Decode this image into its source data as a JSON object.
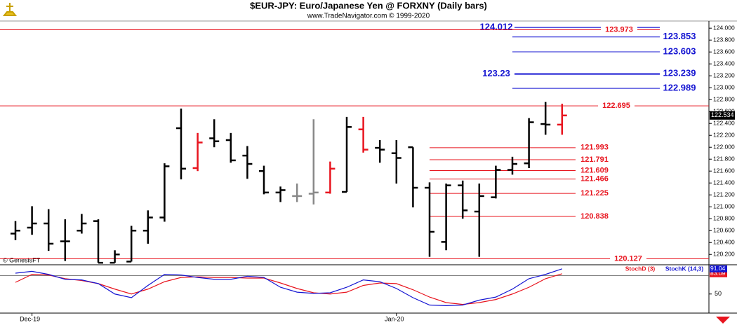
{
  "chart_data": [
    {
      "type": "ohlc",
      "title": "$EUR-JPY:  Euro/Japanese Yen @ FORXNY  (Daily bars)",
      "subtitle": "www.TradeNavigator.com © 1999-2020",
      "categories": [
        null,
        "Dec-19",
        null,
        null,
        null,
        null,
        null,
        null,
        null,
        null,
        null,
        null,
        null,
        null,
        null,
        null,
        null,
        null,
        null,
        null,
        null,
        null,
        null,
        "Jan-20",
        null,
        null,
        null,
        null,
        null,
        null,
        null,
        null,
        null,
        null
      ],
      "open": [
        120.55,
        120.65,
        120.72,
        120.42,
        120.6,
        120.76,
        120.06,
        120.08,
        120.6,
        120.82,
        122.32,
        121.65,
        122.15,
        122.12,
        121.86,
        121.6,
        121.24,
        121.18,
        121.22,
        121.24,
        121.25,
        122.3,
        121.99,
        121.9,
        122.0,
        121.32,
        120.41,
        121.36,
        120.92,
        121.16,
        121.62,
        121.73,
        122.39,
        122.38
      ],
      "high": [
        120.76,
        121.01,
        120.96,
        120.79,
        120.88,
        120.79,
        120.27,
        120.68,
        120.94,
        121.73,
        122.65,
        122.24,
        122.47,
        122.24,
        122.02,
        121.69,
        121.34,
        121.39,
        122.47,
        121.76,
        122.51,
        122.51,
        122.12,
        122.12,
        122.0,
        121.41,
        121.39,
        121.44,
        121.39,
        121.69,
        121.84,
        122.49,
        122.76,
        122.73
      ],
      "low": [
        120.44,
        120.53,
        120.26,
        120.09,
        120.55,
        120.06,
        120.06,
        120.08,
        120.38,
        120.75,
        121.46,
        121.6,
        122.0,
        121.74,
        121.47,
        121.21,
        121.08,
        121.08,
        121.04,
        121.22,
        121.25,
        121.91,
        121.74,
        121.39,
        120.99,
        120.16,
        120.27,
        120.8,
        120.16,
        121.14,
        121.54,
        121.65,
        122.21,
        122.21
      ],
      "close": [
        120.6,
        120.72,
        120.38,
        120.42,
        120.72,
        120.06,
        120.2,
        120.6,
        120.82,
        121.68,
        121.64,
        122.08,
        122.1,
        121.78,
        121.72,
        121.24,
        121.28,
        121.18,
        121.24,
        121.64,
        122.34,
        121.96,
        121.96,
        121.82,
        121.32,
        120.58,
        121.36,
        120.94,
        121.18,
        121.62,
        121.72,
        122.42,
        122.38,
        122.534
      ],
      "bar_colors": [
        "#000000",
        "#000000",
        "#000000",
        "#000000",
        "#000000",
        "#000000",
        "#000000",
        "#000000",
        "#000000",
        "#000000",
        "#000000",
        "#e8141e",
        "#000000",
        "#000000",
        "#000000",
        "#000000",
        "#000000",
        "#888888",
        "#888888",
        "#e8141e",
        "#000000",
        "#e8141e",
        "#000000",
        "#000000",
        "#000000",
        "#000000",
        "#000000",
        "#000000",
        "#000000",
        "#000000",
        "#000000",
        "#000000",
        "#000000",
        "#e8141e"
      ],
      "ylim": [
        120.05,
        124.12
      ],
      "yticks": [
        {
          "value": 120.2,
          "label": "120.200"
        },
        {
          "value": 120.4,
          "label": "120.400"
        },
        {
          "value": 120.6,
          "label": "120.600"
        },
        {
          "value": 120.8,
          "label": "120.800"
        },
        {
          "value": 121.0,
          "label": "121.000"
        },
        {
          "value": 121.2,
          "label": "121.200"
        },
        {
          "value": 121.4,
          "label": "121.400"
        },
        {
          "value": 121.6,
          "label": "121.600"
        },
        {
          "value": 121.8,
          "label": "121.800"
        },
        {
          "value": 122.0,
          "label": "122.000"
        },
        {
          "value": 122.2,
          "label": "122.200"
        },
        {
          "value": 122.4,
          "label": "122.400"
        },
        {
          "value": 122.6,
          "label": "122.600"
        },
        {
          "value": 122.8,
          "label": "122.800"
        },
        {
          "value": 123.0,
          "label": "123.000"
        },
        {
          "value": 123.2,
          "label": "123.200"
        },
        {
          "value": 123.4,
          "label": "123.400"
        },
        {
          "value": 123.6,
          "label": "123.600"
        },
        {
          "value": 123.8,
          "label": "123.800"
        },
        {
          "value": 124.0,
          "label": "124.000"
        }
      ],
      "levels": [
        {
          "value": 124.012,
          "color": "#1414d2"
        },
        {
          "value": 123.973,
          "color": "#e8141e"
        },
        {
          "value": 123.853,
          "color": "#1414d2"
        },
        {
          "value": 123.603,
          "color": "#1414d2"
        },
        {
          "value": 123.23,
          "color": "#1414d2"
        },
        {
          "value": 123.239,
          "color": "#1414d2"
        },
        {
          "value": 122.989,
          "color": "#1414d2"
        },
        {
          "value": 122.695,
          "color": "#e8141e"
        },
        {
          "value": 121.993,
          "color": "#e8141e"
        },
        {
          "value": 121.791,
          "color": "#e8141e"
        },
        {
          "value": 121.609,
          "color": "#e8141e"
        },
        {
          "value": 121.466,
          "color": "#e8141e"
        },
        {
          "value": 121.225,
          "color": "#e8141e"
        },
        {
          "value": 120.838,
          "color": "#e8141e"
        },
        {
          "value": 120.127,
          "color": "#e8141e"
        }
      ]
    },
    {
      "type": "line",
      "annotation": "© GenesisFT",
      "series": [
        {
          "name": "StochD (3)",
          "color": "#e8141e",
          "values": [
            69,
            82,
            81,
            75,
            72,
            67,
            58,
            50,
            58,
            70,
            77,
            78,
            77,
            77,
            76,
            76,
            68,
            59,
            52,
            50,
            53,
            64,
            68,
            67,
            57,
            45,
            36,
            33,
            36,
            41,
            50,
            61,
            75,
            83.09
          ]
        },
        {
          "name": "StochK (14,3)",
          "color": "#1414d2",
          "values": [
            84,
            87,
            82,
            74,
            73,
            67,
            50,
            44,
            64,
            82,
            81,
            77,
            74,
            74,
            79,
            77,
            61,
            53,
            51,
            52,
            61,
            73,
            70,
            59,
            44,
            32,
            31,
            32,
            40,
            45,
            58,
            75,
            82,
            91.04
          ]
        }
      ],
      "ylim": [
        20,
        100
      ],
      "yticks": [
        50
      ],
      "hlines": [
        80
      ]
    }
  ]
}
